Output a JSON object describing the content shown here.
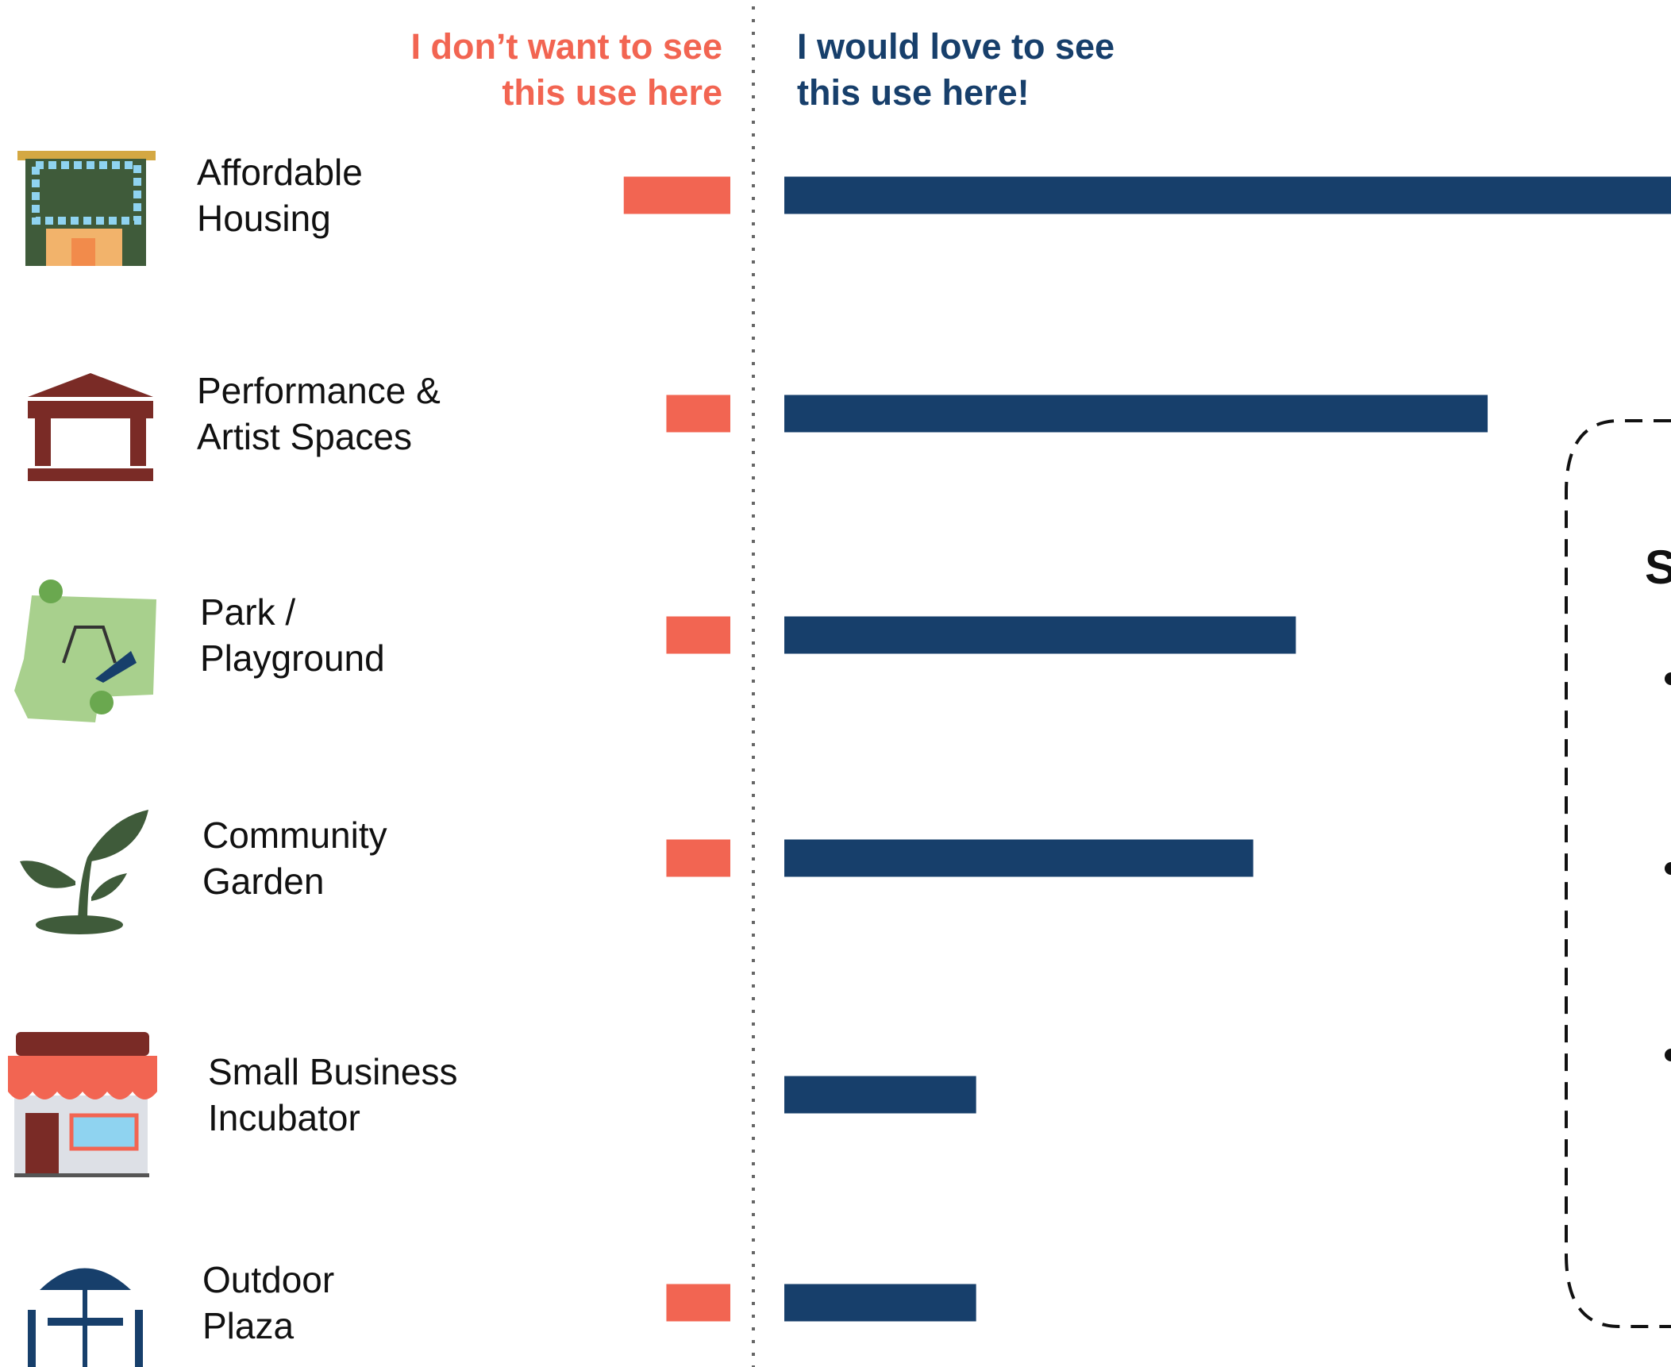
{
  "chart_data": {
    "type": "diverging_bar",
    "left_heading": "I don’t want to see\nthis use here",
    "right_heading": "I would love to see\nthis use here!",
    "categories": [
      "Affordable\nHousing",
      "Performance &\nArtist Spaces",
      "Park /\nPlayground",
      "Community\nGarden",
      "Small Business\nIncubator",
      "Outdoor\nPlaza"
    ],
    "series": [
      {
        "side": "left",
        "color": "#f26552",
        "values": [
          5,
          3,
          3,
          3,
          0,
          3
        ]
      },
      {
        "side": "right",
        "color": "#173f6b",
        "values": [
          45,
          33,
          24,
          22,
          9,
          9
        ]
      }
    ],
    "box_title": "S"
  }
}
